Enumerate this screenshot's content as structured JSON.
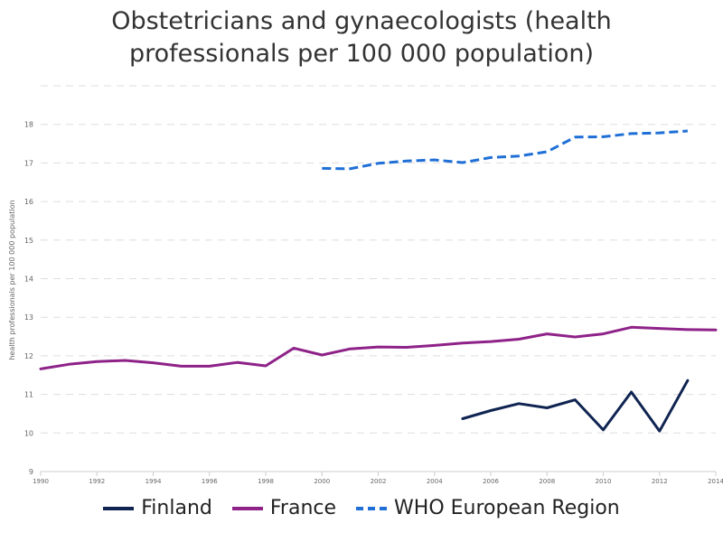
{
  "chart_data": {
    "type": "line",
    "title_lines": [
      "Obstetricians and gynaecologists (health",
      "professionals per 100 000 population)"
    ],
    "ylabel": "health professionals per 100 000 population",
    "xlabel": "",
    "xlim": [
      1990,
      2014
    ],
    "ylim": [
      9,
      19
    ],
    "x_ticks": [
      "1990",
      "1992",
      "1994",
      "1996",
      "1998",
      "2000",
      "2002",
      "2004",
      "2006",
      "2008",
      "2010",
      "2012",
      "2014"
    ],
    "y_ticks": [
      "9",
      "10",
      "11",
      "12",
      "13",
      "14",
      "15",
      "16",
      "17",
      "18"
    ],
    "grid": true,
    "legend_position": "bottom",
    "series": [
      {
        "name": "Finland",
        "color": "#0f2451",
        "dash": false,
        "x": [
          2005,
          2006,
          2007,
          2008,
          2009,
          2010,
          2011,
          2012,
          2013
        ],
        "values": [
          10.37,
          10.58,
          10.76,
          10.65,
          10.86,
          10.08,
          11.06,
          10.05,
          11.36
        ]
      },
      {
        "name": "France",
        "color": "#8e2288",
        "dash": false,
        "x": [
          1990,
          1991,
          1992,
          1993,
          1994,
          1995,
          1996,
          1997,
          1998,
          1999,
          2000,
          2001,
          2002,
          2003,
          2004,
          2005,
          2006,
          2007,
          2008,
          2009,
          2010,
          2011,
          2012,
          2013,
          2014
        ],
        "values": [
          11.66,
          11.78,
          11.85,
          11.88,
          11.82,
          11.73,
          11.73,
          11.83,
          11.74,
          12.2,
          12.02,
          12.18,
          12.23,
          12.22,
          12.27,
          12.33,
          12.37,
          12.43,
          12.57,
          12.49,
          12.57,
          12.74,
          12.71,
          12.68,
          12.67
        ]
      },
      {
        "name": "WHO European Region",
        "color": "#1f6fd6",
        "dash": true,
        "x": [
          2000,
          2001,
          2002,
          2003,
          2004,
          2005,
          2006,
          2007,
          2008,
          2009,
          2010,
          2011,
          2012,
          2013
        ],
        "values": [
          16.86,
          16.85,
          16.99,
          17.05,
          17.08,
          17.01,
          17.14,
          17.18,
          17.29,
          17.67,
          17.68,
          17.76,
          17.78,
          17.83
        ]
      }
    ]
  }
}
